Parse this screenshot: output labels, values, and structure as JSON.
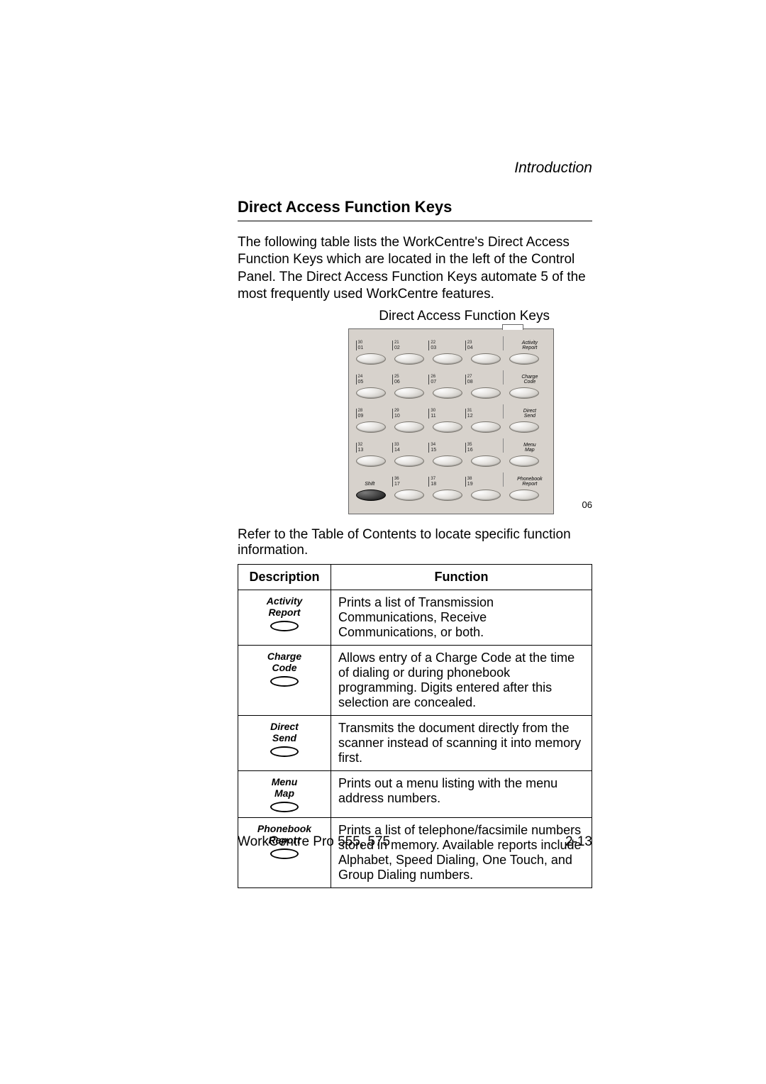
{
  "chapter_label": "Introduction",
  "section_title": "Direct Access Function Keys",
  "intro_paragraph": "The following table lists the WorkCentre's Direct Access Function Keys which are located in the left of the Control Panel. The Direct Access Function Keys automate 5 of the most frequently used WorkCentre features.",
  "figure_caption": "Direct Access Function Keys",
  "figure_number": "06",
  "keypad": {
    "rows": [
      {
        "cells": [
          {
            "u": "30",
            "l": "01"
          },
          {
            "u": "21",
            "l": "02"
          },
          {
            "u": "22",
            "l": "03"
          },
          {
            "u": "23",
            "l": "04"
          }
        ],
        "func": "Activity\nReport"
      },
      {
        "cells": [
          {
            "u": "24",
            "l": "05"
          },
          {
            "u": "25",
            "l": "06"
          },
          {
            "u": "26",
            "l": "07"
          },
          {
            "u": "27",
            "l": "08"
          }
        ],
        "func": "Charge\nCode"
      },
      {
        "cells": [
          {
            "u": "28",
            "l": "09"
          },
          {
            "u": "29",
            "l": "10"
          },
          {
            "u": "30",
            "l": "11"
          },
          {
            "u": "31",
            "l": "12"
          }
        ],
        "func": "Direct\nSend"
      },
      {
        "cells": [
          {
            "u": "32",
            "l": "13"
          },
          {
            "u": "33",
            "l": "14"
          },
          {
            "u": "34",
            "l": "15"
          },
          {
            "u": "35",
            "l": "16"
          }
        ],
        "func": "Menu\nMap"
      }
    ],
    "bottom": {
      "shift_label": "Shift",
      "cells": [
        {
          "u": "36",
          "l": "17"
        },
        {
          "u": "37",
          "l": "18"
        },
        {
          "u": "38",
          "l": "19"
        }
      ],
      "func": "Phonebook\nReport"
    }
  },
  "refer_line": "Refer to the Table of Contents to locate specific function information.",
  "table": {
    "headers": {
      "desc": "Description",
      "func": "Function"
    },
    "rows": [
      {
        "label": "Activity\nReport",
        "text": "Prints a list of Transmission Communications, Receive Communications, or both."
      },
      {
        "label": "Charge\nCode",
        "text": "Allows entry of a Charge Code at the time of dialing or during phonebook programming. Digits entered after this selection are concealed."
      },
      {
        "label": "Direct\nSend",
        "text": "Transmits the document directly from the scanner instead of scanning it into memory first."
      },
      {
        "label": "Menu\nMap",
        "text": "Prints out a menu listing with the menu address numbers."
      },
      {
        "label": "Phonebook\nReport",
        "text": "Prints a list of telephone/facsimile numbers stored in memory. Available reports include Alphabet, Speed Dialing, One Touch, and Group Dialing numbers."
      }
    ]
  },
  "footer": {
    "left": "WorkCentre Pro 555, 575",
    "right": "2-13"
  }
}
